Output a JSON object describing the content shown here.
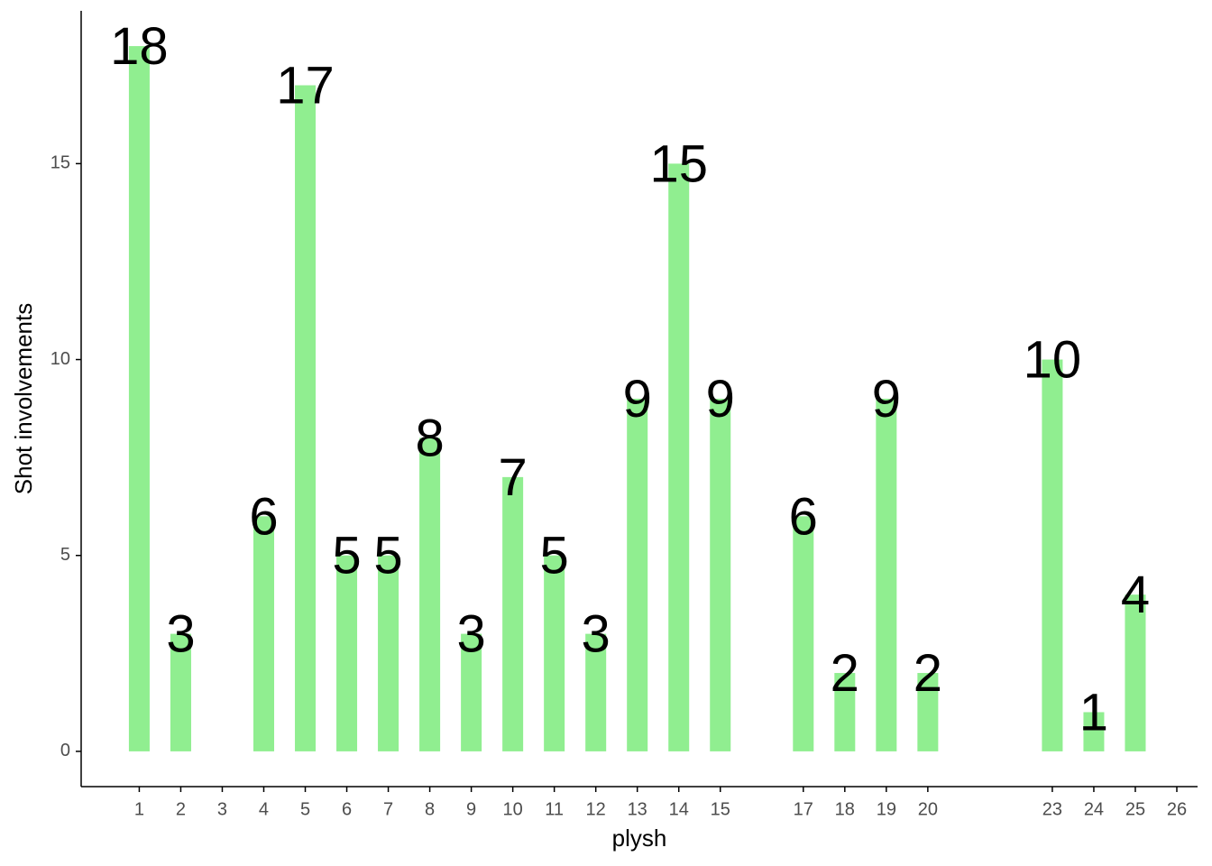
{
  "chart_data": {
    "type": "bar",
    "x_label": "plysh",
    "y_label": "Shot involvements",
    "x": [
      1,
      2,
      4,
      5,
      6,
      7,
      8,
      9,
      10,
      11,
      12,
      13,
      14,
      15,
      17,
      18,
      19,
      20,
      23,
      24,
      25
    ],
    "values": [
      18,
      3,
      6,
      17,
      5,
      5,
      8,
      3,
      7,
      5,
      3,
      9,
      15,
      9,
      6,
      2,
      9,
      2,
      10,
      1,
      4
    ],
    "color": "#90ee90",
    "xlim": [
      -0.4,
      26.5
    ],
    "xticks": [
      1,
      2,
      3,
      4,
      5,
      6,
      7,
      8,
      9,
      10,
      11,
      12,
      13,
      14,
      15,
      17,
      18,
      19,
      20,
      23,
      24,
      25,
      26
    ],
    "ylim": [
      -0.9,
      18.9
    ],
    "yticks": [
      0,
      5,
      10,
      15
    ],
    "grid": false
  }
}
